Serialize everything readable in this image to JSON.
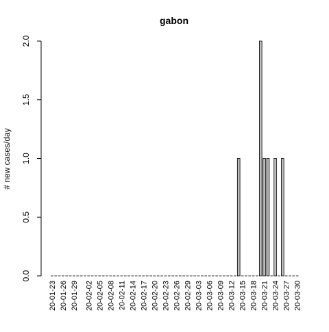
{
  "chart_data": {
    "type": "bar",
    "title": "gabon",
    "xlabel": "",
    "ylabel": "# new cases/day",
    "ylim": [
      0,
      2
    ],
    "yticks": [
      "0.0",
      "0.5",
      "1.0",
      "1.5",
      "2.0"
    ],
    "grid": false,
    "legend": "none",
    "bar_color": "#bebebe",
    "start_date": "2020-01-23",
    "end_date": "2020-03-30",
    "xtick_labels": [
      "20-01-23",
      "20-01-26",
      "20-01-29",
      "20-02-02",
      "20-02-05",
      "20-02-08",
      "20-02-11",
      "20-02-14",
      "20-02-17",
      "20-02-20",
      "20-02-23",
      "20-02-26",
      "20-02-29",
      "20-03-03",
      "20-03-06",
      "20-03-09",
      "20-03-12",
      "20-03-15",
      "20-03-18",
      "20-03-21",
      "20-03-24",
      "20-03-27",
      "20-03-30"
    ],
    "nonzero": [
      {
        "date": "2020-03-14",
        "value": 1
      },
      {
        "date": "2020-03-20",
        "value": 2
      },
      {
        "date": "2020-03-21",
        "value": 1
      },
      {
        "date": "2020-03-22",
        "value": 1
      },
      {
        "date": "2020-03-24",
        "value": 1
      },
      {
        "date": "2020-03-26",
        "value": 1
      }
    ]
  }
}
